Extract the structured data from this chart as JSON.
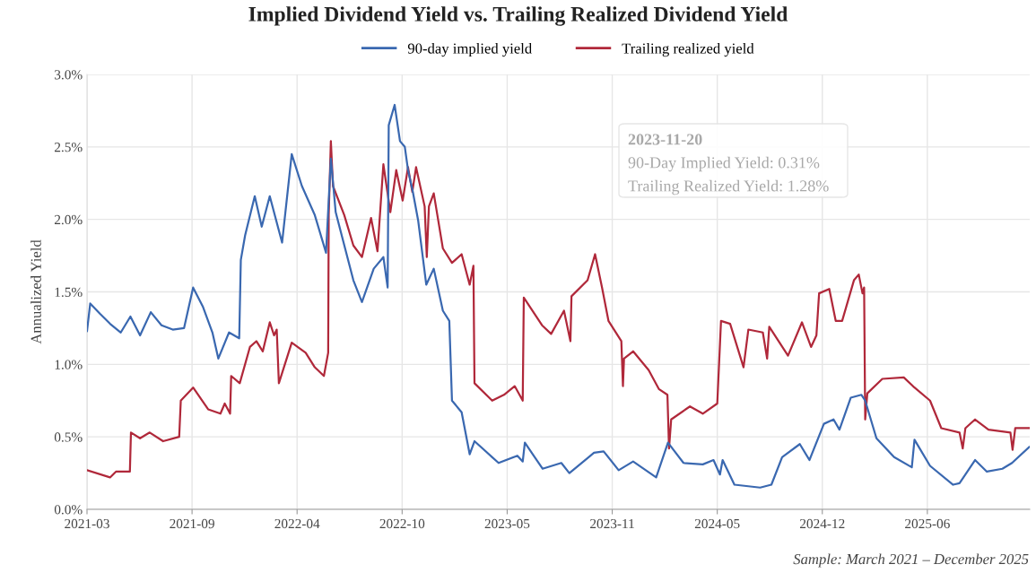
{
  "chart_data": {
    "type": "line",
    "title": "Implied Dividend Yield vs. Trailing Realized Dividend Yield",
    "ylabel": "Annualized Yield",
    "annotations": [
      "Sample: March 2021 – December 2025",
      "2023-11-20",
      "90-Day Implied Yield: 0.31%",
      "Trailing Realized Yield: 1.28%"
    ],
    "xlim": [
      "2021-03-08",
      "2025-12-31"
    ],
    "xticks": [
      {
        "value": "2021-03-08",
        "label": "2021-03"
      },
      {
        "value": "2021-09-20",
        "label": "2021-09"
      },
      {
        "value": "2022-04-04",
        "label": "2022-04"
      },
      {
        "value": "2022-10-17",
        "label": "2022-10"
      },
      {
        "value": "2023-05-01",
        "label": "2023-05"
      },
      {
        "value": "2023-11-13",
        "label": "2023-11"
      },
      {
        "value": "2024-05-27",
        "label": "2024-05"
      },
      {
        "value": "2024-12-09",
        "label": "2024-12"
      },
      {
        "value": "2025-06-23",
        "label": "2025-06"
      }
    ],
    "ylim": [
      0,
      3.0
    ],
    "yticks": [
      {
        "value": 0,
        "label": "0.0%"
      },
      {
        "value": 0.5,
        "label": "0.5%"
      },
      {
        "value": 1.0,
        "label": "1.0%"
      },
      {
        "value": 1.5,
        "label": "1.5%"
      },
      {
        "value": 2.0,
        "label": "2.0%"
      },
      {
        "value": 2.5,
        "label": "2.5%"
      },
      {
        "value": 3.0,
        "label": "3.0%"
      }
    ],
    "grid": true,
    "legend": "top",
    "marker": "none",
    "line_style": "solid",
    "series": [
      {
        "name": "90-day implied yield",
        "color": "#3a68b0",
        "x": [
          "2021-03-08",
          "2021-03-14",
          "2021-04-01",
          "2021-04-20",
          "2021-05-10",
          "2021-05-28",
          "2021-06-15",
          "2021-07-05",
          "2021-07-25",
          "2021-08-15",
          "2021-09-05",
          "2021-09-22",
          "2021-10-10",
          "2021-10-28",
          "2021-11-08",
          "2021-11-28",
          "2021-12-17",
          "2021-12-20",
          "2021-12-28",
          "2022-01-15",
          "2022-01-28",
          "2022-02-12",
          "2022-03-07",
          "2022-03-25",
          "2022-04-13",
          "2022-05-07",
          "2022-05-28",
          "2022-06-06",
          "2022-06-15",
          "2022-07-18",
          "2022-08-03",
          "2022-08-25",
          "2022-09-12",
          "2022-09-20",
          "2022-09-22",
          "2022-10-03",
          "2022-10-13",
          "2022-10-22",
          "2022-10-28",
          "2022-11-06",
          "2022-11-16",
          "2022-12-01",
          "2022-12-15",
          "2023-01-01",
          "2023-01-13",
          "2023-01-18",
          "2023-02-05",
          "2023-02-20",
          "2023-03-01",
          "2023-04-03",
          "2023-04-15",
          "2023-05-20",
          "2023-05-30",
          "2023-06-03",
          "2023-07-06",
          "2023-08-10",
          "2023-08-25",
          "2023-10-10",
          "2023-10-28",
          "2023-11-25",
          "2023-12-22",
          "2024-02-03",
          "2024-02-25",
          "2024-03-25",
          "2024-04-30",
          "2024-05-20",
          "2024-06-01",
          "2024-06-06",
          "2024-06-28",
          "2024-08-15",
          "2024-09-05",
          "2024-09-25",
          "2024-10-28",
          "2024-11-15",
          "2024-12-12",
          "2024-12-30",
          "2025-01-10",
          "2025-01-31",
          "2025-02-20",
          "2025-02-27",
          "2025-03-20",
          "2025-04-22",
          "2025-05-25",
          "2025-05-30",
          "2025-06-28",
          "2025-08-10",
          "2025-08-22",
          "2025-09-20",
          "2025-10-12",
          "2025-11-10",
          "2025-11-28",
          "2025-12-30"
        ],
        "values": [
          1.23,
          1.42,
          1.35,
          1.28,
          1.22,
          1.33,
          1.2,
          1.36,
          1.27,
          1.24,
          1.25,
          1.53,
          1.4,
          1.22,
          1.04,
          1.22,
          1.18,
          1.72,
          1.89,
          2.16,
          1.95,
          2.16,
          1.84,
          2.45,
          2.23,
          2.03,
          1.77,
          2.42,
          2.05,
          1.58,
          1.43,
          1.66,
          1.74,
          1.53,
          2.65,
          2.79,
          2.54,
          2.5,
          2.34,
          2.19,
          1.99,
          1.55,
          1.66,
          1.37,
          1.3,
          0.75,
          0.67,
          0.38,
          0.47,
          0.36,
          0.32,
          0.37,
          0.33,
          0.46,
          0.28,
          0.32,
          0.25,
          0.39,
          0.4,
          0.27,
          0.33,
          0.22,
          0.46,
          0.32,
          0.31,
          0.34,
          0.24,
          0.34,
          0.17,
          0.15,
          0.17,
          0.36,
          0.45,
          0.34,
          0.59,
          0.62,
          0.55,
          0.77,
          0.79,
          0.75,
          0.49,
          0.36,
          0.29,
          0.48,
          0.3,
          0.17,
          0.18,
          0.34,
          0.26,
          0.28,
          0.32,
          0.43
        ]
      },
      {
        "name": "Trailing realized yield",
        "color": "#b0283a",
        "x": [
          "2021-03-08",
          "2021-04-20",
          "2021-05-01",
          "2021-05-27",
          "2021-05-29",
          "2021-06-15",
          "2021-07-03",
          "2021-07-28",
          "2021-08-27",
          "2021-08-30",
          "2021-09-22",
          "2021-10-20",
          "2021-11-12",
          "2021-11-20",
          "2021-11-30",
          "2021-12-02",
          "2021-12-18",
          "2022-01-06",
          "2022-01-18",
          "2022-01-30",
          "2022-02-12",
          "2022-02-20",
          "2022-02-25",
          "2022-03-01",
          "2022-03-25",
          "2022-04-20",
          "2022-05-07",
          "2022-05-24",
          "2022-06-01",
          "2022-06-02",
          "2022-06-06",
          "2022-06-10",
          "2022-07-01",
          "2022-07-18",
          "2022-08-03",
          "2022-08-20",
          "2022-09-01",
          "2022-09-12",
          "2022-09-25",
          "2022-10-06",
          "2022-10-18",
          "2022-10-28",
          "2022-11-05",
          "2022-11-12",
          "2022-11-28",
          "2022-12-02",
          "2022-12-06",
          "2022-12-15",
          "2023-01-01",
          "2023-01-18",
          "2023-02-05",
          "2023-02-20",
          "2023-02-27",
          "2023-03-01",
          "2023-04-03",
          "2023-04-25",
          "2023-05-15",
          "2023-05-30",
          "2023-06-01",
          "2023-07-05",
          "2023-07-22",
          "2023-08-15",
          "2023-08-27",
          "2023-08-29",
          "2023-09-28",
          "2023-10-12",
          "2023-10-25",
          "2023-11-06",
          "2023-11-30",
          "2023-12-03",
          "2023-12-05",
          "2023-12-22",
          "2024-01-20",
          "2024-02-08",
          "2024-02-24",
          "2024-02-27",
          "2024-03-02",
          "2024-04-06",
          "2024-04-30",
          "2024-05-27",
          "2024-06-03",
          "2024-06-20",
          "2024-07-15",
          "2024-07-24",
          "2024-08-20",
          "2024-08-28",
          "2024-09-01",
          "2024-10-06",
          "2024-11-01",
          "2024-11-18",
          "2024-11-28",
          "2024-12-03",
          "2024-12-22",
          "2025-01-03",
          "2025-01-15",
          "2025-02-06",
          "2025-02-15",
          "2025-02-22",
          "2025-02-25",
          "2025-02-27",
          "2025-03-03",
          "2025-03-31",
          "2025-05-10",
          "2025-05-30",
          "2025-06-28",
          "2025-07-19",
          "2025-08-22",
          "2025-08-28",
          "2025-09-02",
          "2025-09-20",
          "2025-10-15",
          "2025-11-25",
          "2025-11-29",
          "2025-12-04",
          "2025-12-30"
        ],
        "values": [
          0.27,
          0.22,
          0.26,
          0.26,
          0.53,
          0.49,
          0.53,
          0.47,
          0.5,
          0.75,
          0.84,
          0.69,
          0.66,
          0.73,
          0.66,
          0.92,
          0.87,
          1.12,
          1.16,
          1.09,
          1.29,
          1.2,
          1.24,
          0.87,
          1.15,
          1.08,
          0.98,
          0.92,
          1.08,
          2.03,
          2.54,
          2.23,
          2.03,
          1.82,
          1.74,
          2.01,
          1.78,
          2.38,
          2.05,
          2.34,
          2.13,
          2.36,
          2.19,
          2.36,
          2.09,
          1.74,
          2.09,
          2.18,
          1.8,
          1.7,
          1.76,
          1.55,
          1.68,
          0.87,
          0.75,
          0.79,
          0.85,
          0.75,
          1.46,
          1.27,
          1.21,
          1.37,
          1.16,
          1.47,
          1.58,
          1.76,
          1.53,
          1.3,
          1.16,
          0.85,
          1.04,
          1.09,
          0.96,
          0.83,
          0.79,
          0.42,
          0.62,
          0.71,
          0.66,
          0.73,
          1.3,
          1.28,
          0.98,
          1.24,
          1.22,
          1.04,
          1.26,
          1.06,
          1.29,
          1.12,
          1.2,
          1.49,
          1.52,
          1.3,
          1.3,
          1.58,
          1.62,
          1.49,
          1.53,
          0.62,
          0.8,
          0.9,
          0.91,
          0.84,
          0.75,
          0.56,
          0.53,
          0.42,
          0.56,
          0.62,
          0.55,
          0.53,
          0.41,
          0.56,
          0.56
        ]
      }
    ]
  }
}
